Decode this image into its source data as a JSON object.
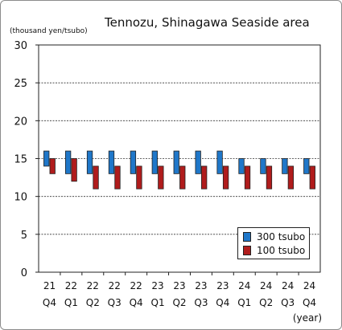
{
  "chart_data": {
    "type": "bar",
    "title": "Tennozu, Shinagawa Seaside area",
    "ylabel": "(thousand yen/tsubo)",
    "xlabel": "(year)",
    "ylim": [
      0,
      30
    ],
    "yticks": [
      0,
      5,
      10,
      15,
      20,
      25,
      30
    ],
    "grid": true,
    "legend_position": "bottom-right",
    "categories": [
      {
        "year": "21",
        "quarter": "Q4"
      },
      {
        "year": "22",
        "quarter": "Q1"
      },
      {
        "year": "22",
        "quarter": "Q2"
      },
      {
        "year": "22",
        "quarter": "Q3"
      },
      {
        "year": "22",
        "quarter": "Q4"
      },
      {
        "year": "23",
        "quarter": "Q1"
      },
      {
        "year": "23",
        "quarter": "Q2"
      },
      {
        "year": "23",
        "quarter": "Q3"
      },
      {
        "year": "23",
        "quarter": "Q4"
      },
      {
        "year": "24",
        "quarter": "Q1"
      },
      {
        "year": "24",
        "quarter": "Q2"
      },
      {
        "year": "24",
        "quarter": "Q3"
      },
      {
        "year": "24",
        "quarter": "Q4"
      }
    ],
    "series": [
      {
        "name": "300 tsubo",
        "color": "#1f77c9",
        "low": [
          14,
          13,
          13,
          13,
          13,
          13,
          13,
          13,
          13,
          13,
          13,
          13,
          13
        ],
        "high": [
          16,
          16,
          16,
          16,
          16,
          16,
          16,
          16,
          16,
          15,
          15,
          15,
          15
        ]
      },
      {
        "name": "100 tsubo",
        "color": "#b01c1c",
        "low": [
          13,
          12,
          11,
          11,
          11,
          11,
          11,
          11,
          11,
          11,
          11,
          11,
          11
        ],
        "high": [
          15,
          15,
          14,
          14,
          14,
          14,
          14,
          14,
          14,
          14,
          14,
          14,
          14
        ]
      }
    ]
  }
}
